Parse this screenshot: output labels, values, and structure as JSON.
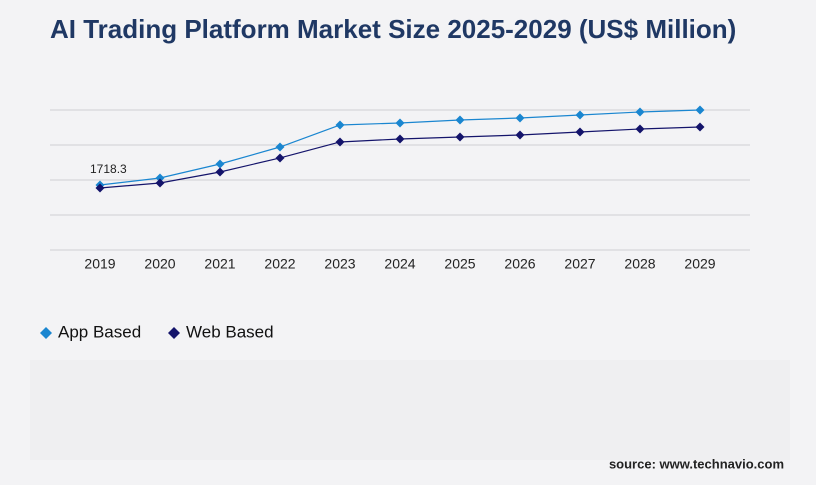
{
  "chart_data": {
    "type": "line",
    "title": "AI Trading Platform Market Size 2025-2029 (US$ Million)",
    "categories": [
      "2019",
      "2020",
      "2021",
      "2022",
      "2023",
      "2024",
      "2025",
      "2026",
      "2027",
      "2028",
      "2029"
    ],
    "series": [
      {
        "name": "App Based",
        "color": "#1a86d0",
        "values": [
          1718.3,
          1903,
          2273,
          2722,
          3304,
          3357,
          3436,
          3489,
          3568,
          3647,
          3700
        ],
        "value_labels": [
          "1718.3",
          null,
          null,
          null,
          null,
          null,
          null,
          null,
          null,
          null,
          null
        ]
      },
      {
        "name": "Web Based",
        "color": "#14146b",
        "values": [
          1639,
          1771,
          2062,
          2432,
          2855,
          2934,
          2987,
          3040,
          3119,
          3198,
          3251
        ]
      }
    ],
    "ylim": [
      0,
      3700
    ],
    "source": "source: www.technavio.com"
  }
}
